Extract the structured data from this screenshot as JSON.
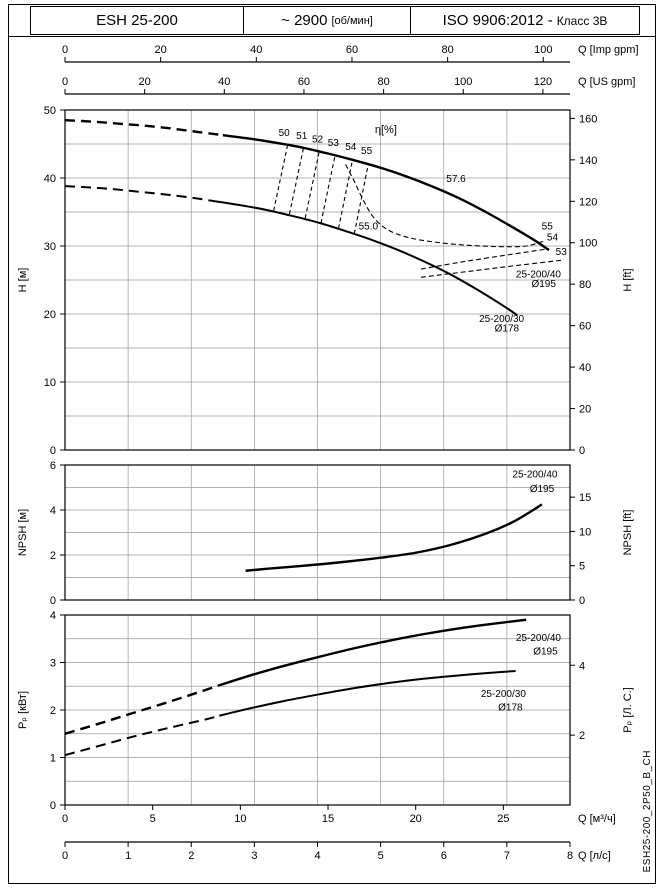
{
  "header": {
    "model": "ESH 25-200",
    "speed_value": "~ 2900",
    "speed_unit": "[об/мин]",
    "standard": "ISO 9906:2012 -",
    "standard_class": "Класс 3В"
  },
  "side_code": "ESH25-200_2P50_B_CH",
  "colors": {
    "line": "#000000",
    "grid": "#9a9a9a",
    "bg": "#ffffff"
  },
  "chart_data": [
    {
      "type": "line",
      "name": "head-capacity-chart",
      "xlim_m3h": [
        0,
        28.8
      ],
      "ylim": [
        0,
        50
      ],
      "left_axis": {
        "label": "H [м]",
        "ticks": [
          0,
          10,
          20,
          30,
          40,
          50
        ]
      },
      "right_axis": {
        "label": "H [ft]",
        "ticks": [
          0,
          20,
          40,
          60,
          80,
          100,
          120,
          140,
          160
        ],
        "unit_to_left": 0.3048
      },
      "top_axes": [
        {
          "label": "Q [Imp gpm]",
          "ticks": [
            0,
            20,
            40,
            60,
            80,
            100
          ],
          "unit_to_m3h": 0.27276
        },
        {
          "label": "Q [US gpm]",
          "ticks": [
            0,
            20,
            40,
            60,
            80,
            100,
            120
          ],
          "unit_to_m3h": 0.22712
        }
      ],
      "grid": {
        "y_step": 5,
        "x_step_m3h": 3.6
      },
      "series": [
        {
          "name": "head-25-200-40-dashed",
          "width": 2.4,
          "dash": "10 6",
          "points": [
            [
              0,
              48.5
            ],
            [
              1.5,
              48.3
            ],
            [
              3,
              48.0
            ],
            [
              4.5,
              47.7
            ],
            [
              6,
              47.3
            ],
            [
              7.5,
              46.8
            ],
            [
              9,
              46.3
            ]
          ]
        },
        {
          "name": "head-25-200-40-solid",
          "width": 2.4,
          "dash": null,
          "points": [
            [
              9,
              46.3
            ],
            [
              10.5,
              45.8
            ],
            [
              12,
              45.2
            ],
            [
              13.5,
              44.5
            ],
            [
              15,
              43.6
            ],
            [
              16.5,
              42.6
            ],
            [
              18,
              41.5
            ],
            [
              19.5,
              40.2
            ],
            [
              21,
              38.7
            ],
            [
              22.5,
              37.0
            ],
            [
              24,
              35.0
            ],
            [
              25.5,
              32.8
            ],
            [
              26.8,
              30.8
            ],
            [
              27.6,
              29.4
            ]
          ]
        },
        {
          "name": "head-25-200-30-dashed",
          "width": 2.0,
          "dash": "10 6",
          "points": [
            [
              0,
              38.8
            ],
            [
              1.5,
              38.6
            ],
            [
              3,
              38.3
            ],
            [
              4.5,
              37.9
            ],
            [
              6,
              37.5
            ],
            [
              7.5,
              37.0
            ],
            [
              8.5,
              36.6
            ]
          ]
        },
        {
          "name": "head-25-200-30-solid",
          "width": 2.0,
          "dash": null,
          "points": [
            [
              8.5,
              36.6
            ],
            [
              10,
              36.0
            ],
            [
              11.5,
              35.3
            ],
            [
              13,
              34.4
            ],
            [
              14.5,
              33.4
            ],
            [
              16,
              32.2
            ],
            [
              17.5,
              30.9
            ],
            [
              19,
              29.4
            ],
            [
              20.5,
              27.7
            ],
            [
              22,
              25.8
            ],
            [
              23.5,
              23.6
            ],
            [
              25,
              21.2
            ],
            [
              25.8,
              19.8
            ]
          ]
        },
        {
          "name": "efficiency-curve",
          "width": 1.1,
          "dash": "5 3",
          "points": [
            [
              16.0,
              42.0
            ],
            [
              16.5,
              39.5
            ],
            [
              17.0,
              36.8
            ],
            [
              17.6,
              34.2
            ],
            [
              18.4,
              32.4
            ],
            [
              19.5,
              31.3
            ],
            [
              21,
              30.6
            ],
            [
              23,
              30.1
            ],
            [
              25,
              29.9
            ],
            [
              26.3,
              30.0
            ],
            [
              27.3,
              30.7
            ]
          ]
        },
        {
          "name": "iso-efficiency-54-line",
          "width": 1.1,
          "dash": "5 3",
          "points": [
            [
              20.3,
              26.6
            ],
            [
              22.5,
              27.6
            ],
            [
              25,
              28.6
            ],
            [
              27.6,
              29.6
            ]
          ]
        },
        {
          "name": "iso-efficiency-53-line",
          "width": 1.1,
          "dash": "5 3",
          "points": [
            [
              20.3,
              25.4
            ],
            [
              22.5,
              26.1
            ],
            [
              25,
              26.9
            ],
            [
              28.3,
              27.9
            ]
          ]
        },
        {
          "name": "eff-contour-50",
          "width": 1.1,
          "dash": "4 3",
          "points": [
            [
              11.9,
              35.2
            ],
            [
              12.7,
              44.9
            ]
          ]
        },
        {
          "name": "eff-contour-51",
          "width": 1.1,
          "dash": "4 3",
          "points": [
            [
              12.8,
              34.7
            ],
            [
              13.6,
              44.4
            ]
          ]
        },
        {
          "name": "eff-contour-52",
          "width": 1.1,
          "dash": "4 3",
          "points": [
            [
              13.7,
              34.1
            ],
            [
              14.5,
              43.9
            ]
          ]
        },
        {
          "name": "eff-contour-53",
          "width": 1.1,
          "dash": "4 3",
          "points": [
            [
              14.6,
              33.4
            ],
            [
              15.4,
              43.3
            ]
          ]
        },
        {
          "name": "eff-contour-54",
          "width": 1.1,
          "dash": "4 3",
          "points": [
            [
              15.6,
              32.6
            ],
            [
              16.4,
              42.7
            ]
          ]
        },
        {
          "name": "eff-contour-55",
          "width": 1.1,
          "dash": "4 3",
          "points": [
            [
              16.5,
              31.8
            ],
            [
              17.3,
              42.1
            ]
          ]
        }
      ],
      "annotations": [
        {
          "text": "η[%]",
          "x": 18.3,
          "y": 46.6,
          "size": 11
        },
        {
          "text": "50",
          "x": 12.5,
          "y": 46.2,
          "size": 10
        },
        {
          "text": "51",
          "x": 13.5,
          "y": 45.7,
          "size": 10
        },
        {
          "text": "52",
          "x": 14.4,
          "y": 45.2,
          "size": 10
        },
        {
          "text": "53",
          "x": 15.3,
          "y": 44.7,
          "size": 10
        },
        {
          "text": "54",
          "x": 16.3,
          "y": 44.1,
          "size": 10
        },
        {
          "text": "55",
          "x": 17.2,
          "y": 43.5,
          "size": 10
        },
        {
          "text": "57.6",
          "x": 22.3,
          "y": 39.4,
          "size": 10
        },
        {
          "text": "55.0",
          "x": 17.3,
          "y": 32.4,
          "size": 10
        },
        {
          "text": "55",
          "x": 27.5,
          "y": 32.4,
          "size": 10
        },
        {
          "text": "54",
          "x": 27.8,
          "y": 30.8,
          "size": 10
        },
        {
          "text": "53",
          "x": 28.3,
          "y": 28.7,
          "size": 10
        },
        {
          "text": "25-200/40",
          "x": 27.0,
          "y": 25.4,
          "size": 10
        },
        {
          "text": "Ø195",
          "x": 27.3,
          "y": 24.0,
          "size": 10
        },
        {
          "text": "25-200/30",
          "x": 24.9,
          "y": 18.8,
          "size": 10
        },
        {
          "text": "Ø178",
          "x": 25.2,
          "y": 17.4,
          "size": 10
        }
      ]
    },
    {
      "type": "line",
      "name": "npsh-chart",
      "xlim_m3h": [
        0,
        28.8
      ],
      "ylim": [
        0,
        6
      ],
      "left_axis": {
        "label": "NPSH [м]",
        "ticks": [
          0,
          2,
          4,
          6
        ]
      },
      "right_axis": {
        "label": "NPSH [ft]",
        "ticks": [
          0,
          5,
          10,
          15
        ],
        "unit_to_left": 0.3048
      },
      "grid": {
        "y_step": 1,
        "x_step_m3h": 3.6
      },
      "series": [
        {
          "name": "npsh-25-200-40",
          "width": 2.4,
          "dash": null,
          "points": [
            [
              10.3,
              1.3
            ],
            [
              12,
              1.42
            ],
            [
              14,
              1.55
            ],
            [
              16,
              1.7
            ],
            [
              18,
              1.88
            ],
            [
              20,
              2.1
            ],
            [
              22,
              2.45
            ],
            [
              24,
              2.95
            ],
            [
              25.5,
              3.45
            ],
            [
              26.6,
              3.95
            ],
            [
              27.2,
              4.25
            ]
          ]
        }
      ],
      "annotations": [
        {
          "text": "25-200/40",
          "x": 26.8,
          "y": 5.45,
          "size": 10
        },
        {
          "text": "Ø195",
          "x": 27.2,
          "y": 4.8,
          "size": 10
        }
      ]
    },
    {
      "type": "line",
      "name": "power-chart",
      "xlim_m3h": [
        0,
        28.8
      ],
      "ylim": [
        0,
        4
      ],
      "left_axis": {
        "label": "Pₚ [кВт]",
        "ticks": [
          0,
          1,
          2,
          3,
          4
        ]
      },
      "right_axis": {
        "label": "Pₚ [Л. С.]",
        "ticks": [
          2,
          4
        ],
        "unit_to_left": 0.7355
      },
      "bottom_axes": [
        {
          "label": "Q [м³/ч]",
          "ticks": [
            0,
            5,
            10,
            15,
            20,
            25
          ],
          "unit_to_m3h": 1
        },
        {
          "label": "Q [л/с]",
          "ticks": [
            0,
            1,
            2,
            3,
            4,
            5,
            6,
            7,
            8
          ],
          "unit_to_m3h": 3.6
        }
      ],
      "grid": {
        "y_step": 0.5,
        "x_step_m3h": 3.6
      },
      "series": [
        {
          "name": "power-25-200-40-dashed",
          "width": 2.4,
          "dash": "10 6",
          "points": [
            [
              0,
              1.5
            ],
            [
              2,
              1.72
            ],
            [
              4,
              1.95
            ],
            [
              6,
              2.18
            ],
            [
              8,
              2.42
            ],
            [
              8.8,
              2.52
            ]
          ]
        },
        {
          "name": "power-25-200-40-solid",
          "width": 2.4,
          "dash": null,
          "points": [
            [
              8.8,
              2.52
            ],
            [
              10.5,
              2.72
            ],
            [
              12.5,
              2.93
            ],
            [
              14.5,
              3.12
            ],
            [
              16.5,
              3.3
            ],
            [
              18.5,
              3.46
            ],
            [
              20.5,
              3.6
            ],
            [
              22.5,
              3.72
            ],
            [
              24.5,
              3.82
            ],
            [
              26.3,
              3.9
            ]
          ]
        },
        {
          "name": "power-25-200-30-dashed",
          "width": 2.0,
          "dash": "10 6",
          "points": [
            [
              0,
              1.05
            ],
            [
              2,
              1.25
            ],
            [
              4,
              1.45
            ],
            [
              6,
              1.63
            ],
            [
              8,
              1.8
            ],
            [
              8.8,
              1.88
            ]
          ]
        },
        {
          "name": "power-25-200-30-solid",
          "width": 2.0,
          "dash": null,
          "points": [
            [
              8.8,
              1.88
            ],
            [
              10.5,
              2.03
            ],
            [
              12.5,
              2.19
            ],
            [
              14.5,
              2.33
            ],
            [
              16.5,
              2.46
            ],
            [
              18.5,
              2.57
            ],
            [
              20.5,
              2.66
            ],
            [
              22.5,
              2.73
            ],
            [
              24.5,
              2.79
            ],
            [
              25.7,
              2.82
            ]
          ]
        }
      ],
      "annotations": [
        {
          "text": "25-200/40",
          "x": 27.0,
          "y": 3.45,
          "size": 10
        },
        {
          "text": "Ø195",
          "x": 27.4,
          "y": 3.17,
          "size": 10
        },
        {
          "text": "25-200/30",
          "x": 25.0,
          "y": 2.27,
          "size": 10
        },
        {
          "text": "Ø178",
          "x": 25.4,
          "y": 1.99,
          "size": 10
        }
      ]
    }
  ]
}
